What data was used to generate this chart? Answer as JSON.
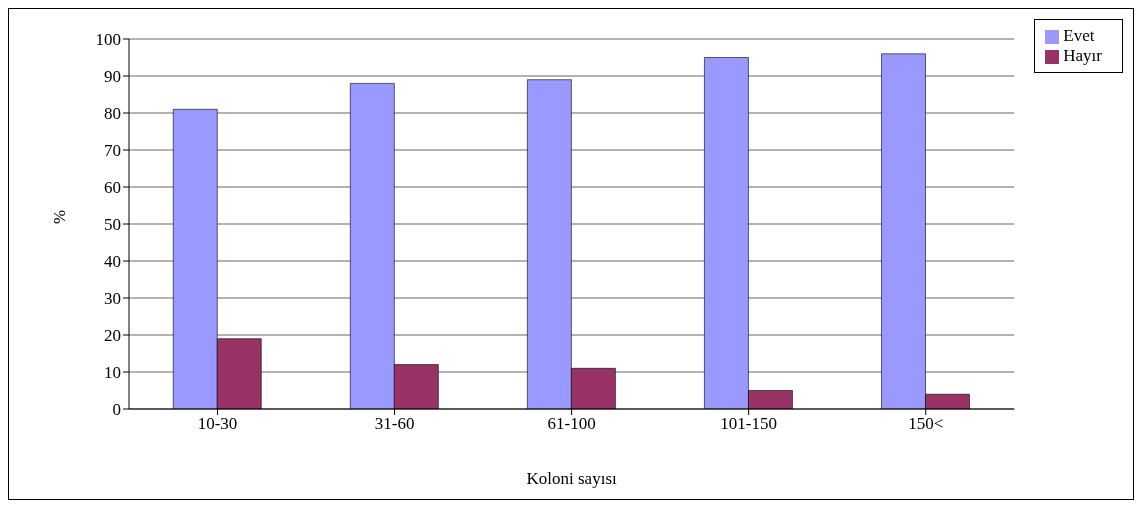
{
  "chart_data": {
    "type": "bar",
    "xlabel": "Koloni sayısı",
    "ylabel": "%",
    "categories": [
      "10-30",
      "31-60",
      "61-100",
      "101-150",
      "150<"
    ],
    "series": [
      {
        "name": "Evet",
        "color": "#9999ff",
        "values": [
          81,
          88,
          89,
          95,
          96
        ]
      },
      {
        "name": "Hayır",
        "color": "#993366",
        "values": [
          19,
          12,
          11,
          5,
          4
        ]
      }
    ],
    "ylim": [
      0,
      100
    ],
    "yticks": [
      0,
      10,
      20,
      30,
      40,
      50,
      60,
      70,
      80,
      90,
      100
    ],
    "grid": "y",
    "legend": "top right"
  }
}
